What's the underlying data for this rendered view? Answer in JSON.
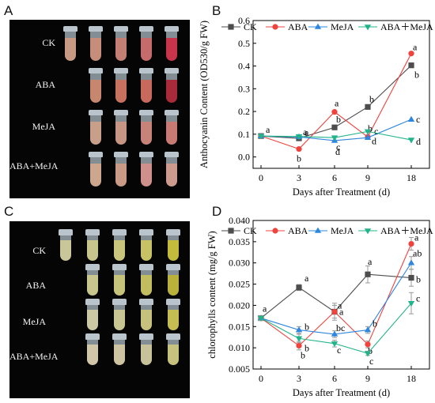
{
  "panels": {
    "A": {
      "letter": "A",
      "rows": [
        "CK",
        "ABA",
        "MeJA",
        "ABA+MeJA"
      ]
    },
    "B": {
      "letter": "B"
    },
    "C": {
      "letter": "C",
      "rows": [
        "CK",
        "ABA",
        "MeJA",
        "ABA+MeJA"
      ]
    },
    "D": {
      "letter": "D"
    }
  },
  "colors": {
    "CK": "#4d4d4d",
    "ABA": "#f0433d",
    "MeJA": "#2e86de",
    "ABA+MeJA": "#21b48a",
    "anthocyanin_tubes": [
      [
        "#c99a83",
        "#c68e7a",
        "#c47f74",
        "#c56b6c",
        "#c8354a"
      ],
      [
        null,
        "#c7866e",
        "#c8715f",
        "#c76a5d",
        "#a92b3a"
      ],
      [
        null,
        "#c8a08a",
        "#c79584",
        "#c7837a",
        "#c77a74"
      ],
      [
        null,
        "#cda68e",
        "#c99a86",
        "#cf8f8a",
        "#cd9a8e"
      ]
    ],
    "chlorophyll_tubes": [
      [
        "#c9c79a",
        "#c7c48c",
        "#c9c57d",
        "#c8c266",
        "#c4bb3c"
      ],
      [
        null,
        "#c8c58d",
        "#c6c37a",
        "#c2bd5f",
        "#b9b13a"
      ],
      [
        null,
        "#cbc9a3",
        "#c8c593",
        "#c6c17c",
        "#c4bd52"
      ],
      [
        null,
        "#d1c7a8",
        "#cfc4a1",
        "#c8c29a",
        "#c6c17e"
      ]
    ]
  },
  "chart_data": [
    {
      "type": "line",
      "panel": "B",
      "xlabel": "Days after Treatment (d)",
      "ylabel": "Anthocyanin Content (OD530/g FW)",
      "x": [
        "0",
        "3",
        "6",
        "9",
        "18"
      ],
      "xticks": [
        "0",
        "3",
        "6",
        "9",
        "18"
      ],
      "ylim": [
        -0.05,
        0.6
      ],
      "yticks": [
        "0.0",
        "0.1",
        "0.2",
        "0.3",
        "0.4",
        "0.5",
        "0.6"
      ],
      "legend_position": "top",
      "series": [
        {
          "name": "CK",
          "marker": "square",
          "values": [
            0.092,
            0.082,
            0.13,
            0.22,
            0.403
          ],
          "labels": [
            "a",
            "a",
            "b",
            "b",
            "b"
          ]
        },
        {
          "name": "ABA",
          "marker": "circle",
          "values": [
            0.092,
            0.035,
            0.198,
            0.088,
            0.455
          ],
          "labels": [
            "",
            "b",
            "a",
            "b",
            "a"
          ]
        },
        {
          "name": "MeJA",
          "marker": "triangle-up",
          "values": [
            0.092,
            0.088,
            0.072,
            0.085,
            0.165
          ],
          "labels": [
            "",
            "a",
            "d",
            "c",
            "c"
          ]
        },
        {
          "name": "ABA+MeJA",
          "marker": "triangle-down",
          "values": [
            0.092,
            0.09,
            0.085,
            0.112,
            0.075
          ],
          "labels": [
            "",
            "",
            "c",
            "d",
            "d"
          ]
        }
      ]
    },
    {
      "type": "line",
      "panel": "D",
      "xlabel": "Days after Treatment (d)",
      "ylabel": "chlorophylls content (mg/g FW)",
      "x": [
        "0",
        "3",
        "6",
        "9",
        "18"
      ],
      "xticks": [
        "0",
        "3",
        "6",
        "9",
        "18"
      ],
      "ylim": [
        0.005,
        0.04
      ],
      "yticks": [
        "0.005",
        "0.010",
        "0.015",
        "0.020",
        "0.025",
        "0.030",
        "0.035",
        "0.040"
      ],
      "legend_position": "top",
      "series": [
        {
          "name": "CK",
          "marker": "square",
          "values": [
            0.017,
            0.0242,
            0.0185,
            0.0273,
            0.0265
          ],
          "errors": [
            0.0005,
            0.0007,
            0.002,
            0.002,
            0.002
          ],
          "labels": [
            "a",
            "a",
            "a",
            "a",
            "b"
          ]
        },
        {
          "name": "ABA",
          "marker": "circle",
          "values": [
            0.017,
            0.0105,
            0.0185,
            0.0108,
            0.0345
          ],
          "errors": [
            0.0005,
            0.001,
            0.0015,
            0.0008,
            0.0015
          ],
          "labels": [
            "",
            "b",
            "a",
            "b",
            "a"
          ]
        },
        {
          "name": "MeJA",
          "marker": "triangle-up",
          "values": [
            0.017,
            0.0142,
            0.0132,
            0.0142,
            0.03
          ],
          "errors": [
            0.0005,
            0.0008,
            0.0008,
            0.0008,
            0.0015
          ],
          "labels": [
            "",
            "b",
            "bc",
            "b",
            "ab"
          ]
        },
        {
          "name": "ABA+MeJA",
          "marker": "triangle-down",
          "values": [
            0.017,
            0.0122,
            0.011,
            0.0087,
            0.0205
          ],
          "errors": [
            0.0005,
            0.001,
            0.0008,
            0.0005,
            0.0025
          ],
          "labels": [
            "",
            "b",
            "c",
            "c",
            "c"
          ]
        }
      ]
    }
  ]
}
